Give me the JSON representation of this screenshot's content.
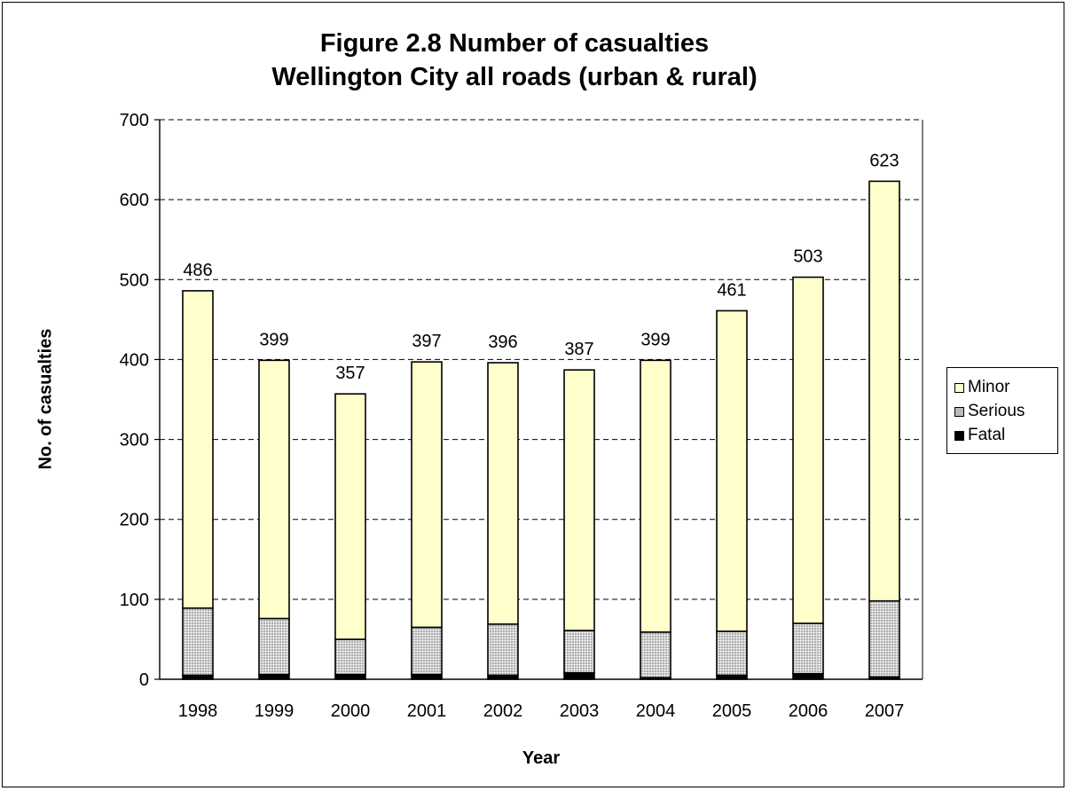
{
  "colors": {
    "minor": "#ffffcc",
    "serious_bg": "#e6e6e6",
    "serious_dot": "#555555",
    "fatal": "#000000"
  },
  "chart_data": {
    "type": "bar",
    "stacked": true,
    "title": [
      "Figure 2.8 Number of casualties",
      "Wellington City all roads (urban & rural)"
    ],
    "xlabel": "Year",
    "ylabel": "No. of casualties",
    "ylim": [
      0,
      700
    ],
    "yticks": [
      0,
      100,
      200,
      300,
      400,
      500,
      600,
      700
    ],
    "grid": "horizontal dashed",
    "legend_position": "right",
    "categories": [
      "1998",
      "1999",
      "2000",
      "2001",
      "2002",
      "2003",
      "2004",
      "2005",
      "2006",
      "2007"
    ],
    "series": [
      {
        "name": "Fatal",
        "values": [
          5,
          6,
          6,
          6,
          5,
          8,
          2,
          5,
          7,
          3
        ]
      },
      {
        "name": "Serious",
        "values": [
          84,
          70,
          44,
          59,
          64,
          53,
          57,
          55,
          63,
          95
        ]
      },
      {
        "name": "Minor",
        "values": [
          397,
          323,
          307,
          332,
          327,
          326,
          340,
          401,
          433,
          525
        ]
      }
    ],
    "totals": [
      486,
      399,
      357,
      397,
      396,
      387,
      399,
      461,
      503,
      623
    ],
    "legend": [
      "Minor",
      "Serious",
      "Fatal"
    ]
  }
}
